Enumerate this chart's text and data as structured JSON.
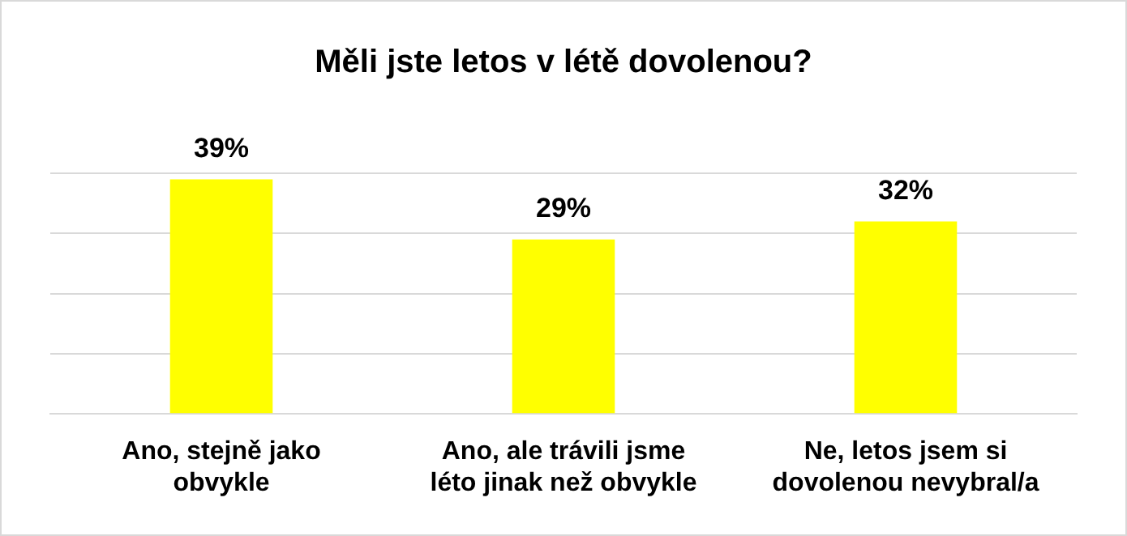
{
  "chart_data": {
    "type": "bar",
    "title": "Měli jste letos v létě dovolenou?",
    "categories": [
      "Ano, stejně jako obvykle",
      "Ano, ale trávili jsme léto jinak než obvykle",
      "Ne, letos jsem si dovolenou nevybral/a"
    ],
    "values": [
      39,
      29,
      32
    ],
    "color": "#ffff00",
    "value_labels": [
      "39%",
      "29%",
      "32%"
    ],
    "ylim": [
      0,
      40
    ],
    "yticks": [
      {
        "value": 0,
        "label": null
      },
      {
        "value": 10,
        "label": null
      },
      {
        "value": 20,
        "label": null
      },
      {
        "value": 30,
        "label": null
      },
      {
        "value": 40,
        "label": null
      }
    ],
    "grid": "y",
    "tick_labels": "x",
    "legend": false
  }
}
